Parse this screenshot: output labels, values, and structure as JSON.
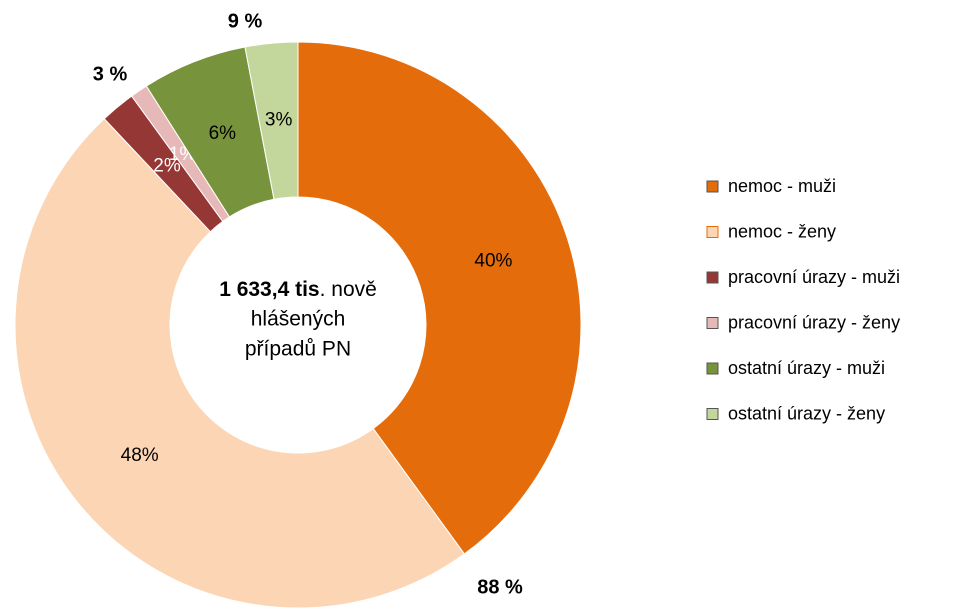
{
  "chart_data": {
    "type": "donut",
    "categories": [
      "nemoc - muži",
      "nemoc - ženy",
      "pracovní úrazy - muži",
      "pracovní úrazy - ženy",
      "ostatní úrazy - muži",
      "ostatní úrazy - ženy"
    ],
    "values": [
      40,
      48,
      2,
      1,
      6,
      3
    ],
    "value_labels": [
      "40%",
      "48%",
      "2%",
      "1%",
      "6%",
      "3%"
    ],
    "colors": [
      "#E46C0A",
      "#FCD5B5",
      "#953735",
      "#E6B9B8",
      "#77933C",
      "#C3D69B"
    ],
    "group_totals": [
      {
        "value": 88,
        "label": "88 %"
      },
      {
        "value": 3,
        "label": "3 %"
      },
      {
        "value": 9,
        "label": "9 %"
      }
    ],
    "center_text": {
      "bold": "1 633,4 tis",
      "rest": ". nově",
      "line2": "hlášených",
      "line3": "případů PN"
    },
    "legend": "right"
  }
}
